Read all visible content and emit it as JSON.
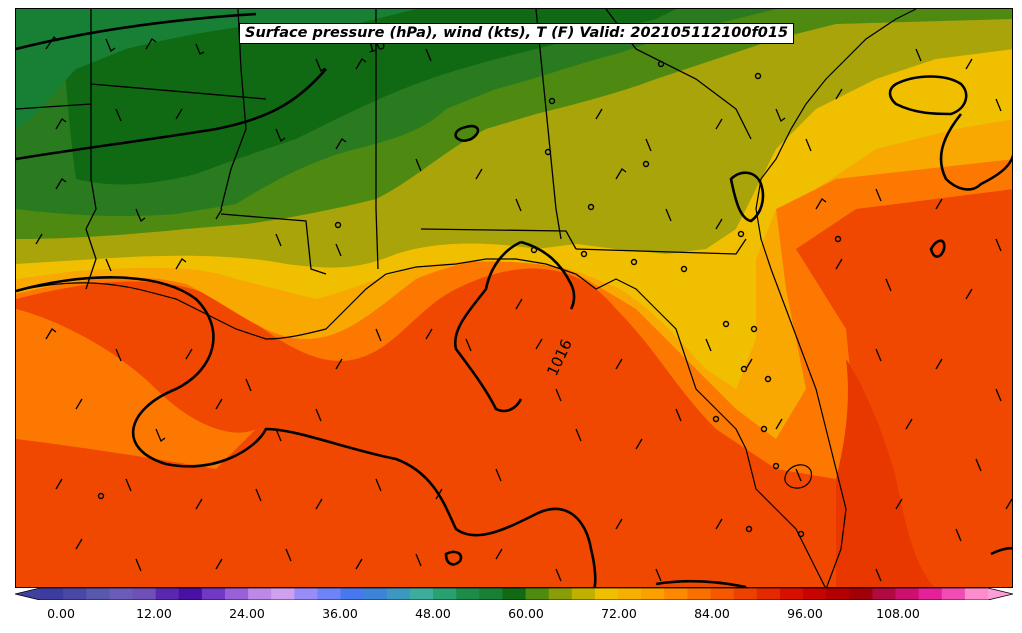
{
  "title": "Surface pressure (hPa), wind (kts), T (F) Valid: 202105112100f015",
  "isobar_labels": [
    "1016",
    "10"
  ],
  "colorbar": {
    "ticks": [
      "0.00",
      "12.00",
      "24.00",
      "36.00",
      "48.00",
      "60.00",
      "72.00",
      "84.00",
      "96.00",
      "108.00"
    ],
    "colors": [
      "#3c3c9e",
      "#4a48a6",
      "#5858ae",
      "#6a5cb8",
      "#6e50b8",
      "#5a28b0",
      "#4a10a6",
      "#7038c4",
      "#9a60d8",
      "#be88e8",
      "#d0a0f0",
      "#9a8cf8",
      "#6c84f8",
      "#4878f0",
      "#3c84d8",
      "#3c98c0",
      "#3cac9c",
      "#28a070",
      "#1c8c48",
      "#188034",
      "#106a14",
      "#4e8c10",
      "#8a9c08",
      "#c0b000",
      "#f0c000",
      "#f8b000",
      "#fca000",
      "#fe8800",
      "#fa7000",
      "#f65800",
      "#ee4000",
      "#e42800",
      "#d81000",
      "#c80400",
      "#b40000",
      "#a20008",
      "#b00a40",
      "#cc1070",
      "#e4209a",
      "#f04cb4",
      "#fc8ccc"
    ],
    "under_color": "#4040a0",
    "over_color": "#fc9cd8"
  }
}
